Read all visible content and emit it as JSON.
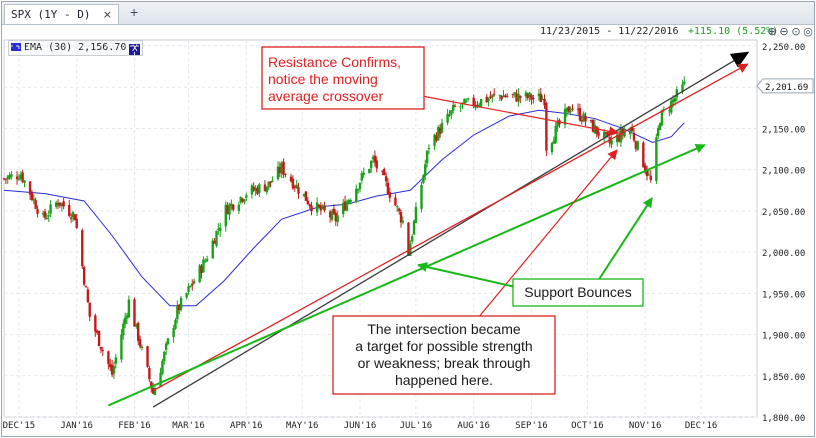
{
  "tab": {
    "label": "SPX (1Y - D)",
    "close": "×",
    "add": "+"
  },
  "header": {
    "range": "11/23/2015 - 11/22/2016",
    "change": "+115.10 (5.52%)",
    "change_color": "#1aa11a"
  },
  "legend": {
    "label": "EMA (30) 2,156.70",
    "color": "#2b2bd8",
    "close": "X"
  },
  "toolbar": [
    "zoom-in-icon",
    "zoom-out-icon",
    "zoom-fit-icon",
    "pan-icon"
  ],
  "chart_data": {
    "type": "candlestick",
    "ylim": [
      1800,
      2250
    ],
    "yticks": [
      1800,
      1850,
      1900,
      1950,
      2000,
      2050,
      2100,
      2150,
      2200,
      2250
    ],
    "ytick_labels": [
      "1,800.00",
      "1,850.00",
      "1,900.00",
      "1,950.00",
      "2,000.00",
      "2,050.00",
      "2,100.00",
      "2,150.00",
      "2,200.00",
      "2,250.00"
    ],
    "xticks": [
      "DEC'15",
      "JAN'16",
      "FEB'16",
      "MAR'16",
      "APR'16",
      "MAY'16",
      "JUN'16",
      "JUL'16",
      "AUG'16",
      "SEP'16",
      "OCT'16",
      "NOV'16",
      "DEC'16"
    ],
    "x_range": [
      "2015-11-23",
      "2016-12-31"
    ],
    "last_price": 2201.69,
    "last_price_label": "2,201.69",
    "up_color": "#1aa11a",
    "down_color": "#c41a1a",
    "ema_color": "#2b2bd8",
    "ema_points": [
      [
        "2015-11-23",
        2075
      ],
      [
        "2015-12-15",
        2071
      ],
      [
        "2016-01-05",
        2062
      ],
      [
        "2016-01-20",
        2020
      ],
      [
        "2016-02-05",
        1970
      ],
      [
        "2016-02-20",
        1935
      ],
      [
        "2016-03-05",
        1935
      ],
      [
        "2016-03-20",
        1965
      ],
      [
        "2016-04-05",
        2005
      ],
      [
        "2016-04-20",
        2040
      ],
      [
        "2016-05-10",
        2055
      ],
      [
        "2016-05-25",
        2058
      ],
      [
        "2016-06-10",
        2068
      ],
      [
        "2016-06-28",
        2075
      ],
      [
        "2016-07-15",
        2112
      ],
      [
        "2016-08-01",
        2142
      ],
      [
        "2016-08-20",
        2165
      ],
      [
        "2016-09-05",
        2172
      ],
      [
        "2016-09-20",
        2168
      ],
      [
        "2016-10-05",
        2162
      ],
      [
        "2016-10-20",
        2150
      ],
      [
        "2016-11-05",
        2133
      ],
      [
        "2016-11-15",
        2140
      ],
      [
        "2016-11-22",
        2157
      ]
    ],
    "price_anchors": [
      [
        "2015-11-23",
        2089
      ],
      [
        "2015-12-02",
        2095
      ],
      [
        "2015-12-14",
        2040
      ],
      [
        "2015-12-22",
        2062
      ],
      [
        "2015-12-31",
        2044
      ],
      [
        "2016-01-08",
        1922
      ],
      [
        "2016-01-20",
        1852
      ],
      [
        "2016-01-29",
        1940
      ],
      [
        "2016-02-11",
        1829
      ],
      [
        "2016-02-24",
        1929
      ],
      [
        "2016-03-10",
        1990
      ],
      [
        "2016-03-21",
        2052
      ],
      [
        "2016-04-01",
        2072
      ],
      [
        "2016-04-13",
        2082
      ],
      [
        "2016-04-20",
        2102
      ],
      [
        "2016-05-06",
        2057
      ],
      [
        "2016-05-19",
        2040
      ],
      [
        "2016-06-08",
        2112
      ],
      [
        "2016-06-16",
        2077
      ],
      [
        "2016-06-24",
        2037
      ],
      [
        "2016-06-27",
        2000
      ],
      [
        "2016-07-08",
        2130
      ],
      [
        "2016-07-22",
        2175
      ],
      [
        "2016-08-15",
        2190
      ],
      [
        "2016-09-08",
        2186
      ],
      [
        "2016-09-09",
        2128
      ],
      [
        "2016-09-22",
        2177
      ],
      [
        "2016-10-13",
        2132
      ],
      [
        "2016-10-24",
        2151
      ],
      [
        "2016-11-04",
        2085
      ],
      [
        "2016-11-09",
        2163
      ],
      [
        "2016-11-22",
        2202
      ]
    ],
    "trendlines": [
      {
        "color": "#3a3a3a",
        "from": [
          "2016-02-11",
          1812
        ],
        "to": [
          "2016-12-26",
          2242
        ]
      },
      {
        "color": "#e02020",
        "from": [
          "2016-02-11",
          1832
        ],
        "to": [
          "2016-12-26",
          2228
        ]
      },
      {
        "color": "#18b818",
        "from": [
          "2016-01-18",
          1814
        ],
        "to": [
          "2016-12-03",
          2130
        ]
      }
    ],
    "annotations": [
      {
        "id": "resistance",
        "lines": [
          "Resistance Confirms,",
          "notice the moving",
          "average crossover"
        ],
        "text_color": "#e02020",
        "border": "#e02020"
      },
      {
        "id": "intersection",
        "lines": [
          "The intersection became",
          "a target for possible strength",
          "or weakness; break through",
          "happened here."
        ],
        "text_color": "#1a1a1a",
        "border": "#e02020"
      },
      {
        "id": "support",
        "lines": [
          "Support Bounces"
        ],
        "text_color": "#1a1a1a",
        "border": "#18b818"
      }
    ]
  }
}
